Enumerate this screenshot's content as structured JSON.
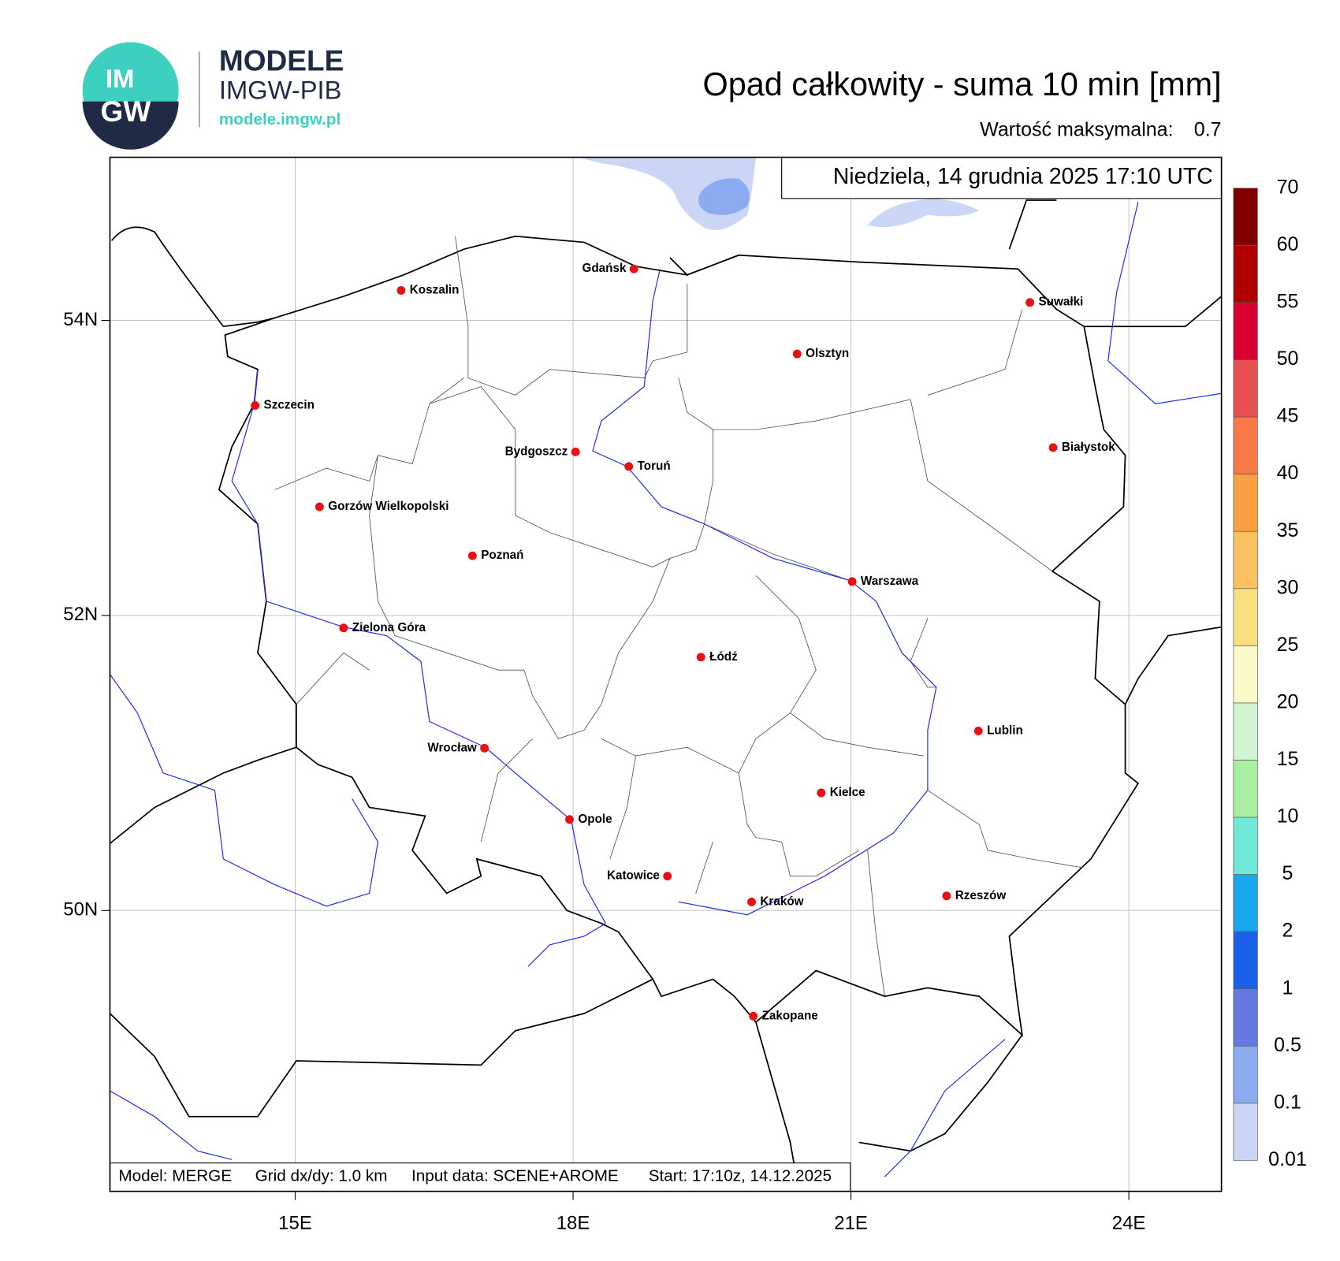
{
  "header": {
    "logo_letters": [
      "IM",
      "GW"
    ],
    "brand": "MODELE",
    "brand_sub": "IMGW-PIB",
    "url": "modele.imgw.pl"
  },
  "chart_data": {
    "type": "map",
    "title": "Opad całkowity - suma 10 min [mm]",
    "max_label": "Wartość maksymalna:",
    "max_value": 0.7,
    "timestamp": "Niedziela, 14 grudnia 2025 17:10 UTC",
    "xlim": [
      13.0,
      25.0
    ],
    "ylim": [
      48.096,
      55.106
    ],
    "xticks": [
      {
        "value": 15,
        "label": "15E"
      },
      {
        "value": 18,
        "label": "18E"
      },
      {
        "value": 21,
        "label": "21E"
      },
      {
        "value": 24,
        "label": "24E"
      }
    ],
    "yticks": [
      {
        "value": 50,
        "label": "50N"
      },
      {
        "value": 52,
        "label": "52N"
      },
      {
        "value": 54,
        "label": "54N"
      }
    ],
    "grid": true,
    "cities": [
      "Gdańsk",
      "Koszalin",
      "Szczecin",
      "Suwałki",
      "Olsztyn",
      "Bydgoszcz",
      "Toruń",
      "Białystok",
      "Gorzów Wielkopolski",
      "Poznań",
      "Warszawa",
      "Zielona Góra",
      "Łódź",
      "Lublin",
      "Wrocław",
      "Kielce",
      "Opole",
      "Katowice",
      "Kraków",
      "Rzeszów",
      "Zakopane"
    ],
    "city_color": "#e81010",
    "colorbar": {
      "levels": [
        0.01,
        0.1,
        0.5,
        1,
        2,
        5,
        10,
        15,
        20,
        25,
        30,
        35,
        40,
        45,
        50,
        55,
        60,
        70
      ],
      "colors": [
        "#cbd5f6",
        "#8caaf0",
        "#6478e0",
        "#1a60e8",
        "#18a8f0",
        "#70e8d8",
        "#a8f0a0",
        "#d0f5d0",
        "#fafac8",
        "#f8e080",
        "#fbc060",
        "#fba040",
        "#f87848",
        "#e85050",
        "#d80030",
        "#b00000",
        "#800000"
      ]
    },
    "footer": [
      "Model: MERGE",
      "Grid dx/dy: 1.0 km",
      "Input data: SCENE+AROME",
      "Start: 17:10z, 14.12.2025"
    ]
  }
}
